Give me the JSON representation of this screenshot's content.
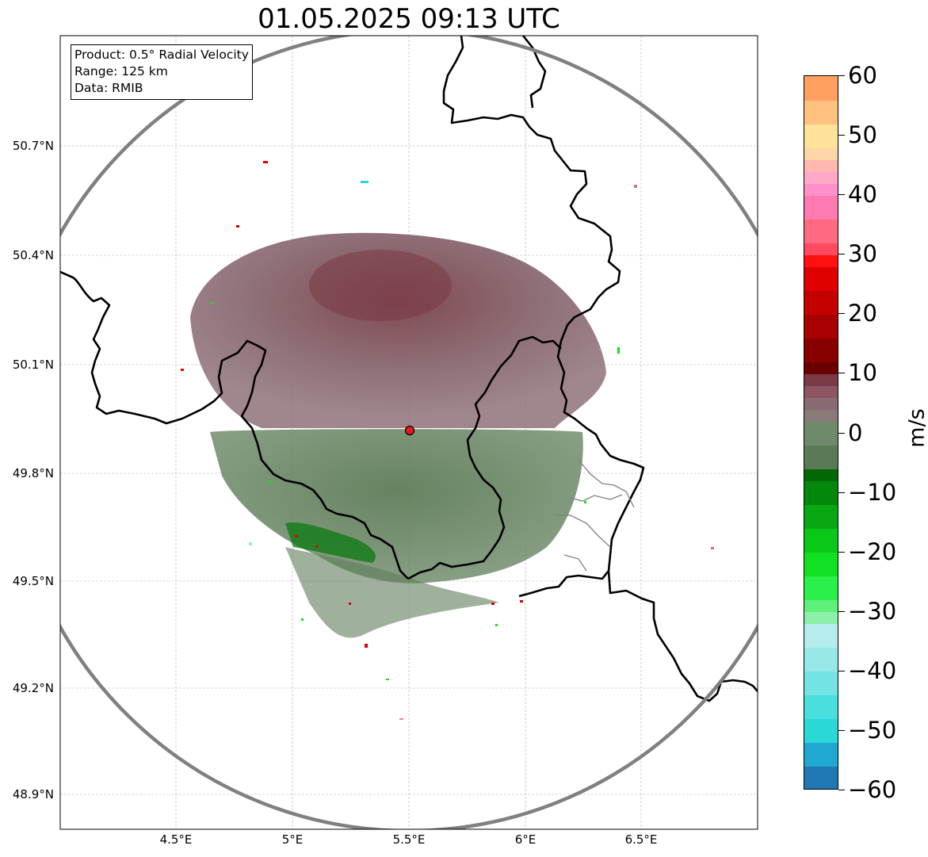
{
  "title": "01.05.2025 09:13 UTC",
  "info_box": {
    "product": "Product: 0.5° Radial Velocity",
    "range": "Range: 125 km",
    "source": "Data: RMIB"
  },
  "axes": {
    "lat_ticks": [
      "50.7°N",
      "50.4°N",
      "50.1°N",
      "49.8°N",
      "49.5°N",
      "49.2°N",
      "48.9°N"
    ],
    "lon_ticks": [
      "4.5°E",
      "5°E",
      "5.5°E",
      "6°E",
      "6.5°E"
    ],
    "grid": true
  },
  "radar": {
    "site_marker": "radar-site-dot",
    "site_color": "#e31a1c",
    "range_ring_color": "#808080"
  },
  "colorbar": {
    "unit": "m/s",
    "min": -60,
    "max": 60,
    "ticks": [
      "60",
      "50",
      "40",
      "30",
      "20",
      "10",
      "0",
      "−10",
      "−20",
      "−30",
      "−40",
      "−50",
      "−60"
    ],
    "bands": [
      {
        "from": -60,
        "to": -56,
        "color": "#1f78b4"
      },
      {
        "from": -56,
        "to": -52,
        "color": "#20a8d0"
      },
      {
        "from": -52,
        "to": -48,
        "color": "#2bd8d8"
      },
      {
        "from": -48,
        "to": -44,
        "color": "#4adede"
      },
      {
        "from": -44,
        "to": -40,
        "color": "#73e3e3"
      },
      {
        "from": -40,
        "to": -36,
        "color": "#99e8e8"
      },
      {
        "from": -36,
        "to": -32,
        "color": "#b5eded"
      },
      {
        "from": -32,
        "to": -30,
        "color": "#8cf0a8"
      },
      {
        "from": -30,
        "to": -28,
        "color": "#5ef07a"
      },
      {
        "from": -28,
        "to": -24,
        "color": "#2bf04a"
      },
      {
        "from": -24,
        "to": -20,
        "color": "#10e020"
      },
      {
        "from": -20,
        "to": -16,
        "color": "#0ac818"
      },
      {
        "from": -16,
        "to": -12,
        "color": "#07a812"
      },
      {
        "from": -12,
        "to": -8,
        "color": "#04880c"
      },
      {
        "from": -8,
        "to": -6,
        "color": "#026806"
      },
      {
        "from": -6,
        "to": -2,
        "color": "#5a7a55"
      },
      {
        "from": -2,
        "to": 2,
        "color": "#6f8a6a"
      },
      {
        "from": 2,
        "to": 4,
        "color": "#8a7a78"
      },
      {
        "from": 4,
        "to": 6,
        "color": "#8a6a72"
      },
      {
        "from": 6,
        "to": 8,
        "color": "#8c5560"
      },
      {
        "from": 8,
        "to": 10,
        "color": "#7a3a44"
      },
      {
        "from": 10,
        "to": 12,
        "color": "#6a0000"
      },
      {
        "from": 12,
        "to": 16,
        "color": "#880000"
      },
      {
        "from": 16,
        "to": 20,
        "color": "#a80000"
      },
      {
        "from": 20,
        "to": 24,
        "color": "#c40000"
      },
      {
        "from": 24,
        "to": 28,
        "color": "#e00000"
      },
      {
        "from": 28,
        "to": 30,
        "color": "#ff1010"
      },
      {
        "from": 30,
        "to": 32,
        "color": "#ff4a60"
      },
      {
        "from": 32,
        "to": 36,
        "color": "#ff6a80"
      },
      {
        "from": 36,
        "to": 40,
        "color": "#ff7ab0"
      },
      {
        "from": 40,
        "to": 42,
        "color": "#ff90cc"
      },
      {
        "from": 42,
        "to": 44,
        "color": "#ffa8c8"
      },
      {
        "from": 44,
        "to": 46,
        "color": "#ffb8b0"
      },
      {
        "from": 46,
        "to": 48,
        "color": "#ffd6a8"
      },
      {
        "from": 48,
        "to": 52,
        "color": "#ffe39a"
      },
      {
        "from": 52,
        "to": 56,
        "color": "#ffc080"
      },
      {
        "from": 56,
        "to": 60,
        "color": "#ffa060"
      }
    ]
  }
}
